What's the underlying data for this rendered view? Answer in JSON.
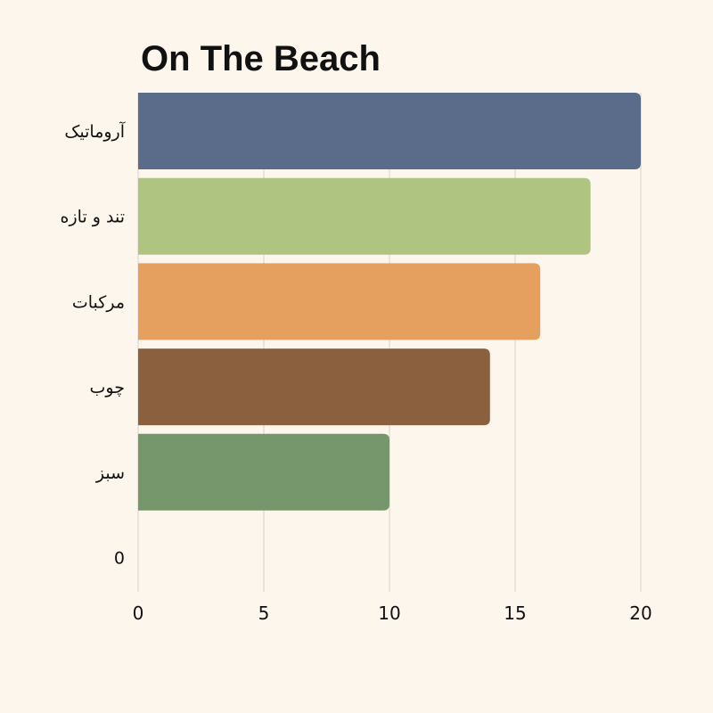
{
  "chart_data": {
    "type": "bar",
    "orientation": "horizontal",
    "title": "On The Beach",
    "categories": [
      "آروماتیک",
      "تند و تازه",
      "مرکبات",
      "چوب",
      "سبز",
      "0"
    ],
    "values": [
      20,
      18,
      16,
      14,
      10,
      0
    ],
    "colors": [
      "#5b6b8a",
      "#afc480",
      "#e59f5e",
      "#8a603f",
      "#76976b",
      "#cccccc"
    ],
    "x_ticks": [
      0,
      5,
      10,
      15,
      20
    ],
    "xlim": [
      0,
      20
    ],
    "xlabel": "",
    "ylabel": "",
    "grid": true,
    "legend": false
  }
}
